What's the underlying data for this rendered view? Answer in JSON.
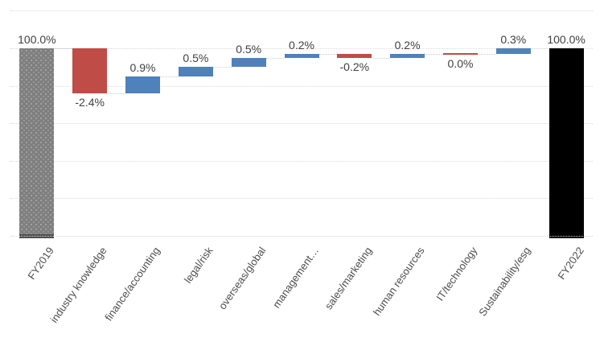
{
  "chart_data": {
    "type": "bar",
    "subtype": "waterfall",
    "title": "",
    "xlabel": "",
    "ylabel": "",
    "grid": true,
    "legend": false,
    "ylim": [
      90,
      102
    ],
    "gridline_interval": 2,
    "categories": [
      "FY2019",
      "industry knowledge",
      "finance/accounting",
      "legal/risk",
      "overseas/global",
      "management…",
      "sales/marketing",
      "human resources",
      "IT/technology",
      "Sustainability/esg",
      "FY2022"
    ],
    "values": [
      100.0,
      -2.4,
      0.9,
      0.5,
      0.5,
      0.2,
      -0.2,
      0.2,
      0.0,
      0.3,
      100.0
    ],
    "data_labels": [
      "100.0%",
      "-2.4%",
      "0.9%",
      "0.5%",
      "0.5%",
      "0.2%",
      "-0.2%",
      "0.2%",
      "0.0%",
      "0.3%",
      "100.0%"
    ],
    "bar_types": [
      "total-start",
      "decrease",
      "increase",
      "increase",
      "increase",
      "increase",
      "decrease",
      "increase",
      "zero",
      "increase",
      "total-end"
    ],
    "colors": {
      "increase": "#4f81bd",
      "decrease": "#bf4c46",
      "zero_line": "#bf4c46",
      "total_start": "#7f7f7f",
      "total_start_cap": "#4f4f4f",
      "total_end": "#000000",
      "total_end_cap": "#000000",
      "gridline": "#d9d9d9",
      "connector": "#cccccc",
      "data_label_text": "#404040",
      "axis_label_text": "#4d4d4d"
    }
  }
}
